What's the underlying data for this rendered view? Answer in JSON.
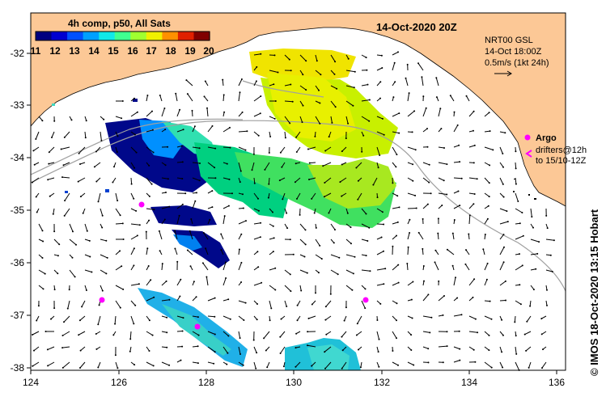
{
  "map": {
    "date_title": "14-Oct-2020 20Z",
    "lon_ticks": [
      "124",
      "126",
      "128",
      "130",
      "132",
      "134",
      "136"
    ],
    "lat_ticks": [
      "-32",
      "-33",
      "-34",
      "-35",
      "-36",
      "-37",
      "-38"
    ],
    "colors": {
      "land": "#fcc896",
      "frame": "#000000",
      "arrow": "#000000",
      "argo": "#ff00ff",
      "contour": "#a0a0a0"
    }
  },
  "colorbar": {
    "title": "4h comp, p50, All Sats",
    "labels": [
      "11",
      "12",
      "13",
      "14",
      "15",
      "16",
      "17",
      "18",
      "19",
      "20"
    ],
    "colors": [
      "#000080",
      "#0000d0",
      "#0050ff",
      "#00a0ff",
      "#10e8e8",
      "#40ff90",
      "#a0ff30",
      "#f0f000",
      "#ff9000",
      "#e02000",
      "#800000"
    ]
  },
  "current_legend": {
    "line1": "NRT00 GSL",
    "line2": "14-Oct 18:00Z",
    "line3": "0.5m/s (1kt 24h)"
  },
  "argo_legend": {
    "label": "Argo",
    "drifters_line1": "drifters@12h",
    "drifters_line2": "to 15/10-12Z"
  },
  "credit": "© IMOS 18-Oct-2020 13:15 Hobart"
}
